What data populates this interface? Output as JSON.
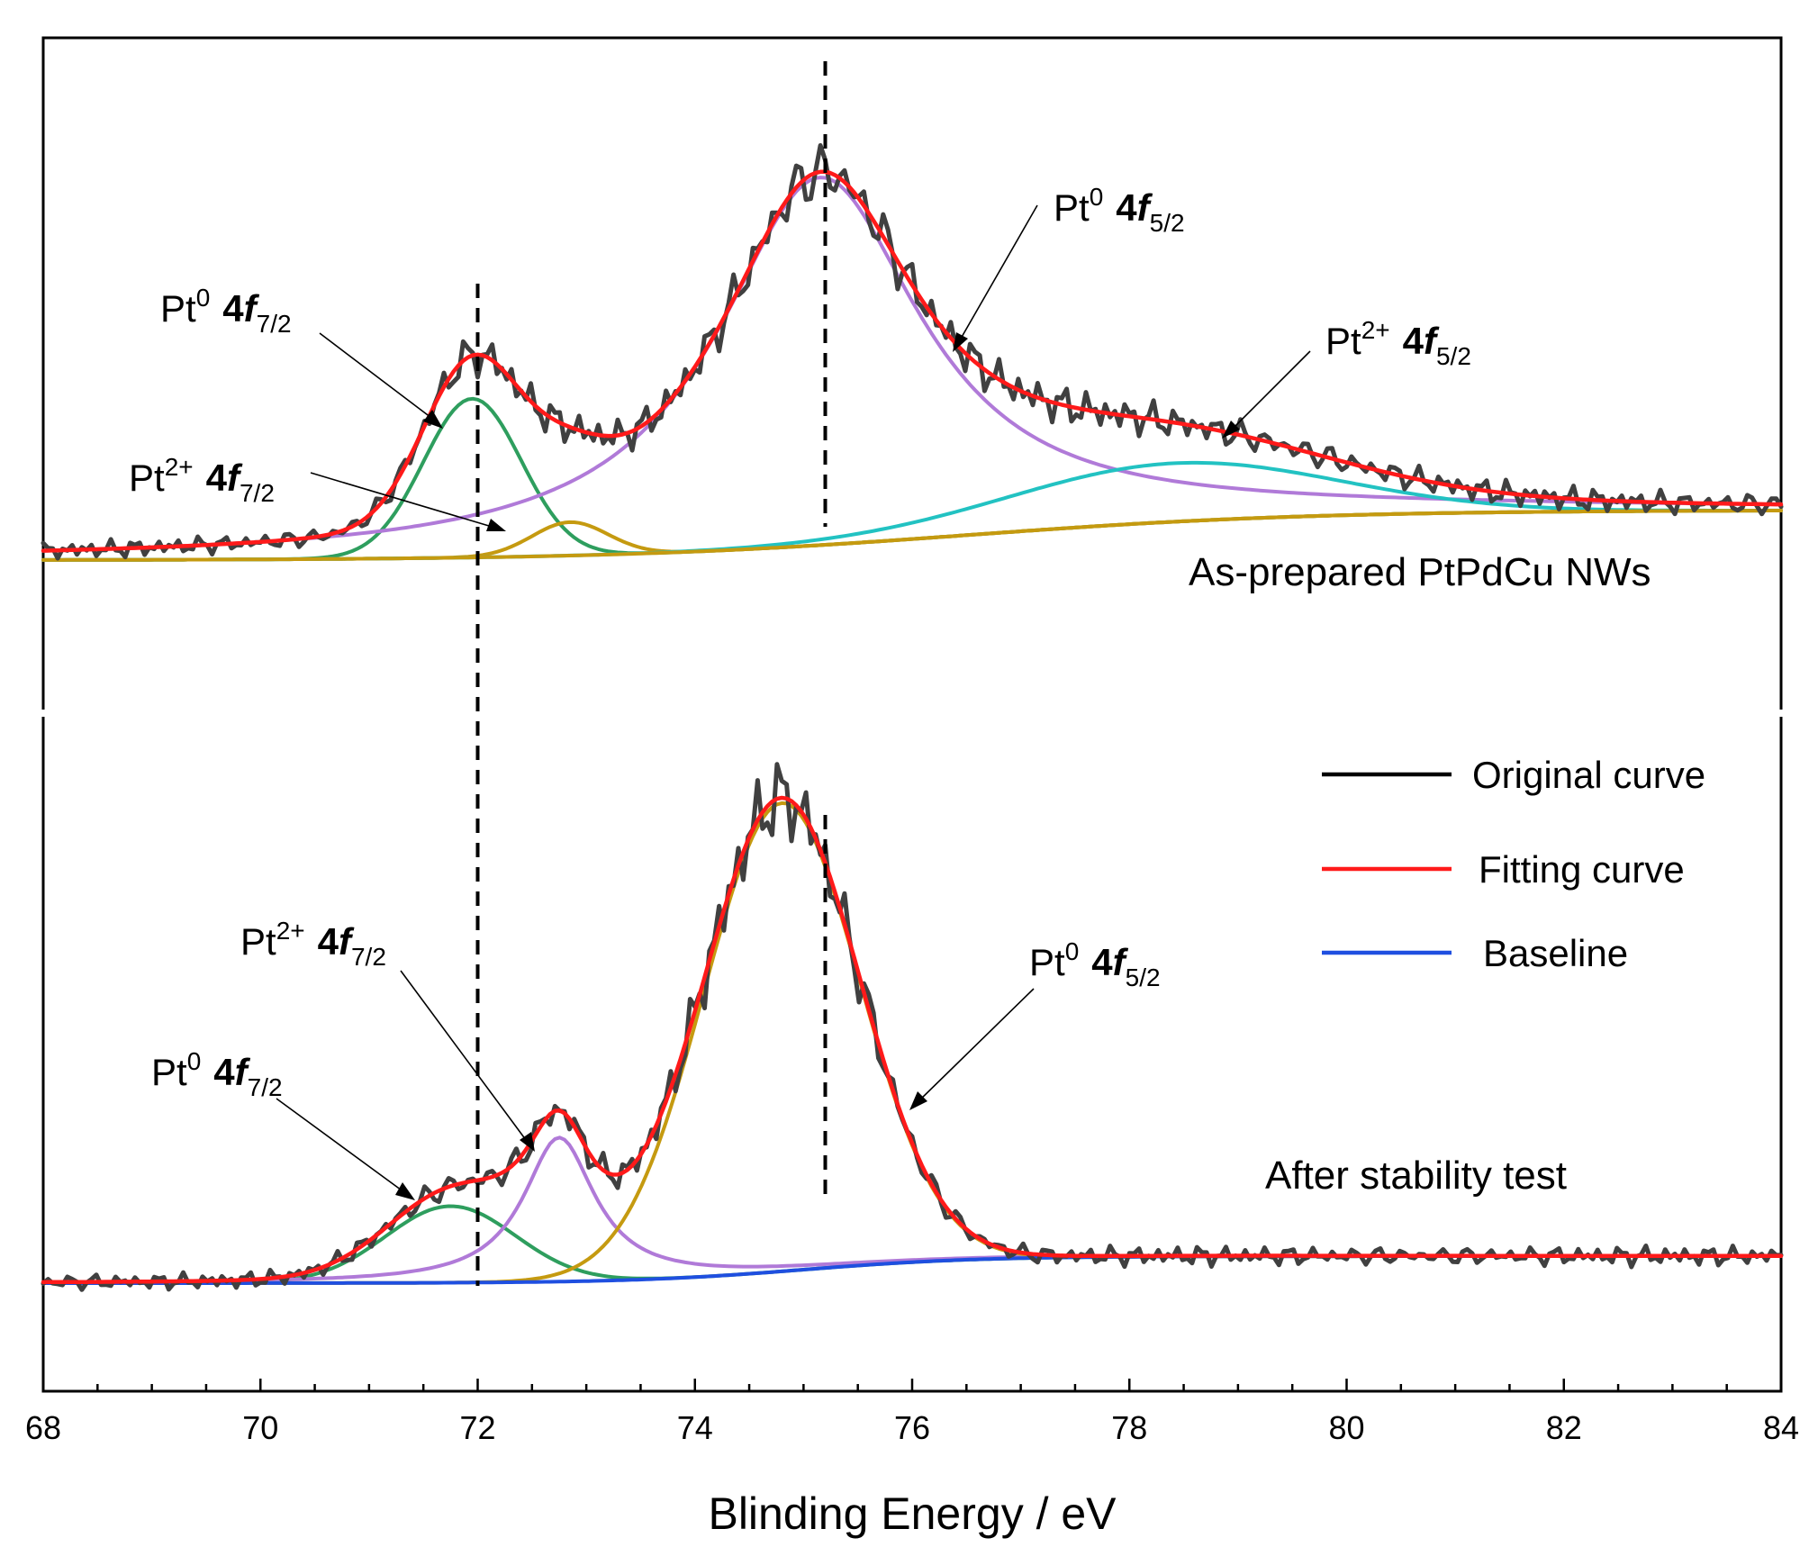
{
  "chart_data": {
    "type": "line",
    "title": "",
    "xlabel": "Blinding Energy / eV",
    "ylabel": "",
    "xlim": [
      68,
      84
    ],
    "x_ticks": [
      68,
      70,
      72,
      74,
      76,
      78,
      80,
      82,
      84
    ],
    "x_tick_labels": [
      "68",
      "70",
      "72",
      "74",
      "76",
      "78",
      "80",
      "82",
      "84"
    ],
    "y_axis_visible": false,
    "reference_lines": [
      72.0,
      75.2
    ],
    "legend": {
      "position": "right, lower panel",
      "entries": [
        {
          "label": "Original curve",
          "color": "#000000"
        },
        {
          "label": "Fitting curve",
          "color": "#ff1a1a"
        },
        {
          "label": "Baseline",
          "color": "#1f4fe0"
        }
      ]
    },
    "panels": [
      {
        "name": "top",
        "label": "As-prepared PtPdCu NWs",
        "ylim": [
          0,
          100
        ],
        "components": [
          {
            "name": "Pt0 4f7/2",
            "color": "#2e9e5e",
            "center": 71.95,
            "height": 38,
            "sigma": 0.45
          },
          {
            "name": "Pt2+ 4f7/2",
            "color": "#c59a10",
            "center": 72.85,
            "height": 8,
            "sigma": 0.35
          },
          {
            "name": "Pt0 4f5/2",
            "color": "#b07ad8",
            "center": 75.15,
            "height": 88,
            "gamma": 1.15
          },
          {
            "name": "Pt2+ 4f5/2",
            "color": "#22c2c2",
            "center": 78.4,
            "height": 14,
            "sigma": 1.5
          }
        ],
        "baseline": {
          "color": "#c59a10",
          "low": 6,
          "high": 18,
          "step_center": 76.5,
          "step_width": 1.6
        },
        "fit_color": "#ff1a1a",
        "original_color": "#000000",
        "annotations": [
          {
            "label": "Pt",
            "sup": "0",
            "orbital": "4",
            "f": "f",
            "sub": "7/2"
          },
          {
            "label": "Pt",
            "sup": "2+",
            "orbital": "4",
            "f": "f",
            "sub": "7/2"
          },
          {
            "label": "Pt",
            "sup": "0",
            "orbital": "4",
            "f": "f",
            "sub": "5/2"
          },
          {
            "label": "Pt",
            "sup": "2+",
            "orbital": "4",
            "f": "f",
            "sub": "5/2"
          }
        ]
      },
      {
        "name": "bottom",
        "label": "After stability test",
        "ylim": [
          0,
          100
        ],
        "components": [
          {
            "name": "Pt0 4f7/2",
            "color": "#2e9e5e",
            "center": 71.75,
            "height": 17,
            "sigma": 0.6
          },
          {
            "name": "Pt2+ 4f7/2",
            "color": "#b07ad8",
            "center": 72.75,
            "height": 32,
            "gamma": 0.4
          },
          {
            "name": "Pt0 4f5/2",
            "color": "#c59a10",
            "center": 74.8,
            "height": 104,
            "sigma": 0.72
          }
        ],
        "baseline": {
          "color": "#1f4fe0",
          "low": 4,
          "high": 10,
          "step_center": 75.0,
          "step_width": 0.8
        },
        "fit_color": "#ff1a1a",
        "original_color": "#000000",
        "annotations": [
          {
            "label": "Pt",
            "sup": "0",
            "orbital": "4",
            "f": "f",
            "sub": "7/2"
          },
          {
            "label": "Pt",
            "sup": "2+",
            "orbital": "4",
            "f": "f",
            "sub": "7/2"
          },
          {
            "label": "Pt",
            "sup": "0",
            "orbital": "4",
            "f": "f",
            "sub": "5/2"
          }
        ]
      }
    ]
  }
}
